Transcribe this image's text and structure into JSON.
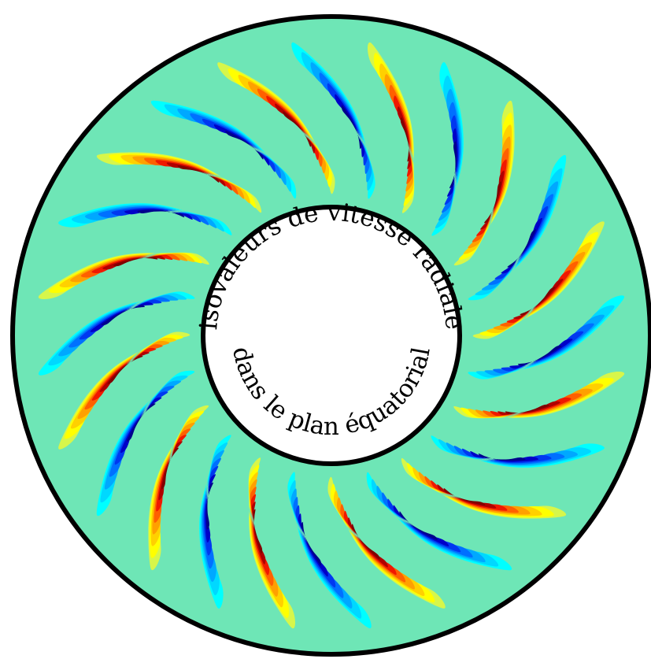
{
  "caption": {
    "top_text": "isovaleurs de vitesse radiale",
    "bottom_text": "dans le plan équatorial"
  },
  "colors": {
    "background_fluid": "#6ee6b6",
    "outline": "#000000",
    "inner_disk": "#ffffff",
    "positive_palette": [
      "#d7f64a",
      "#ffff00",
      "#ffd000",
      "#ffa000",
      "#ff6000",
      "#f01800",
      "#b00000",
      "#800000"
    ],
    "negative_palette": [
      "#00ffff",
      "#00d8ff",
      "#00a8ff",
      "#0070ff",
      "#0038f0",
      "#0000c8",
      "#00008c"
    ]
  },
  "pattern": {
    "cells_per_ring": 12,
    "alternating_sign": "positive-negative",
    "cell_shape": "crescent",
    "spiral_direction": "counterclockwise"
  }
}
